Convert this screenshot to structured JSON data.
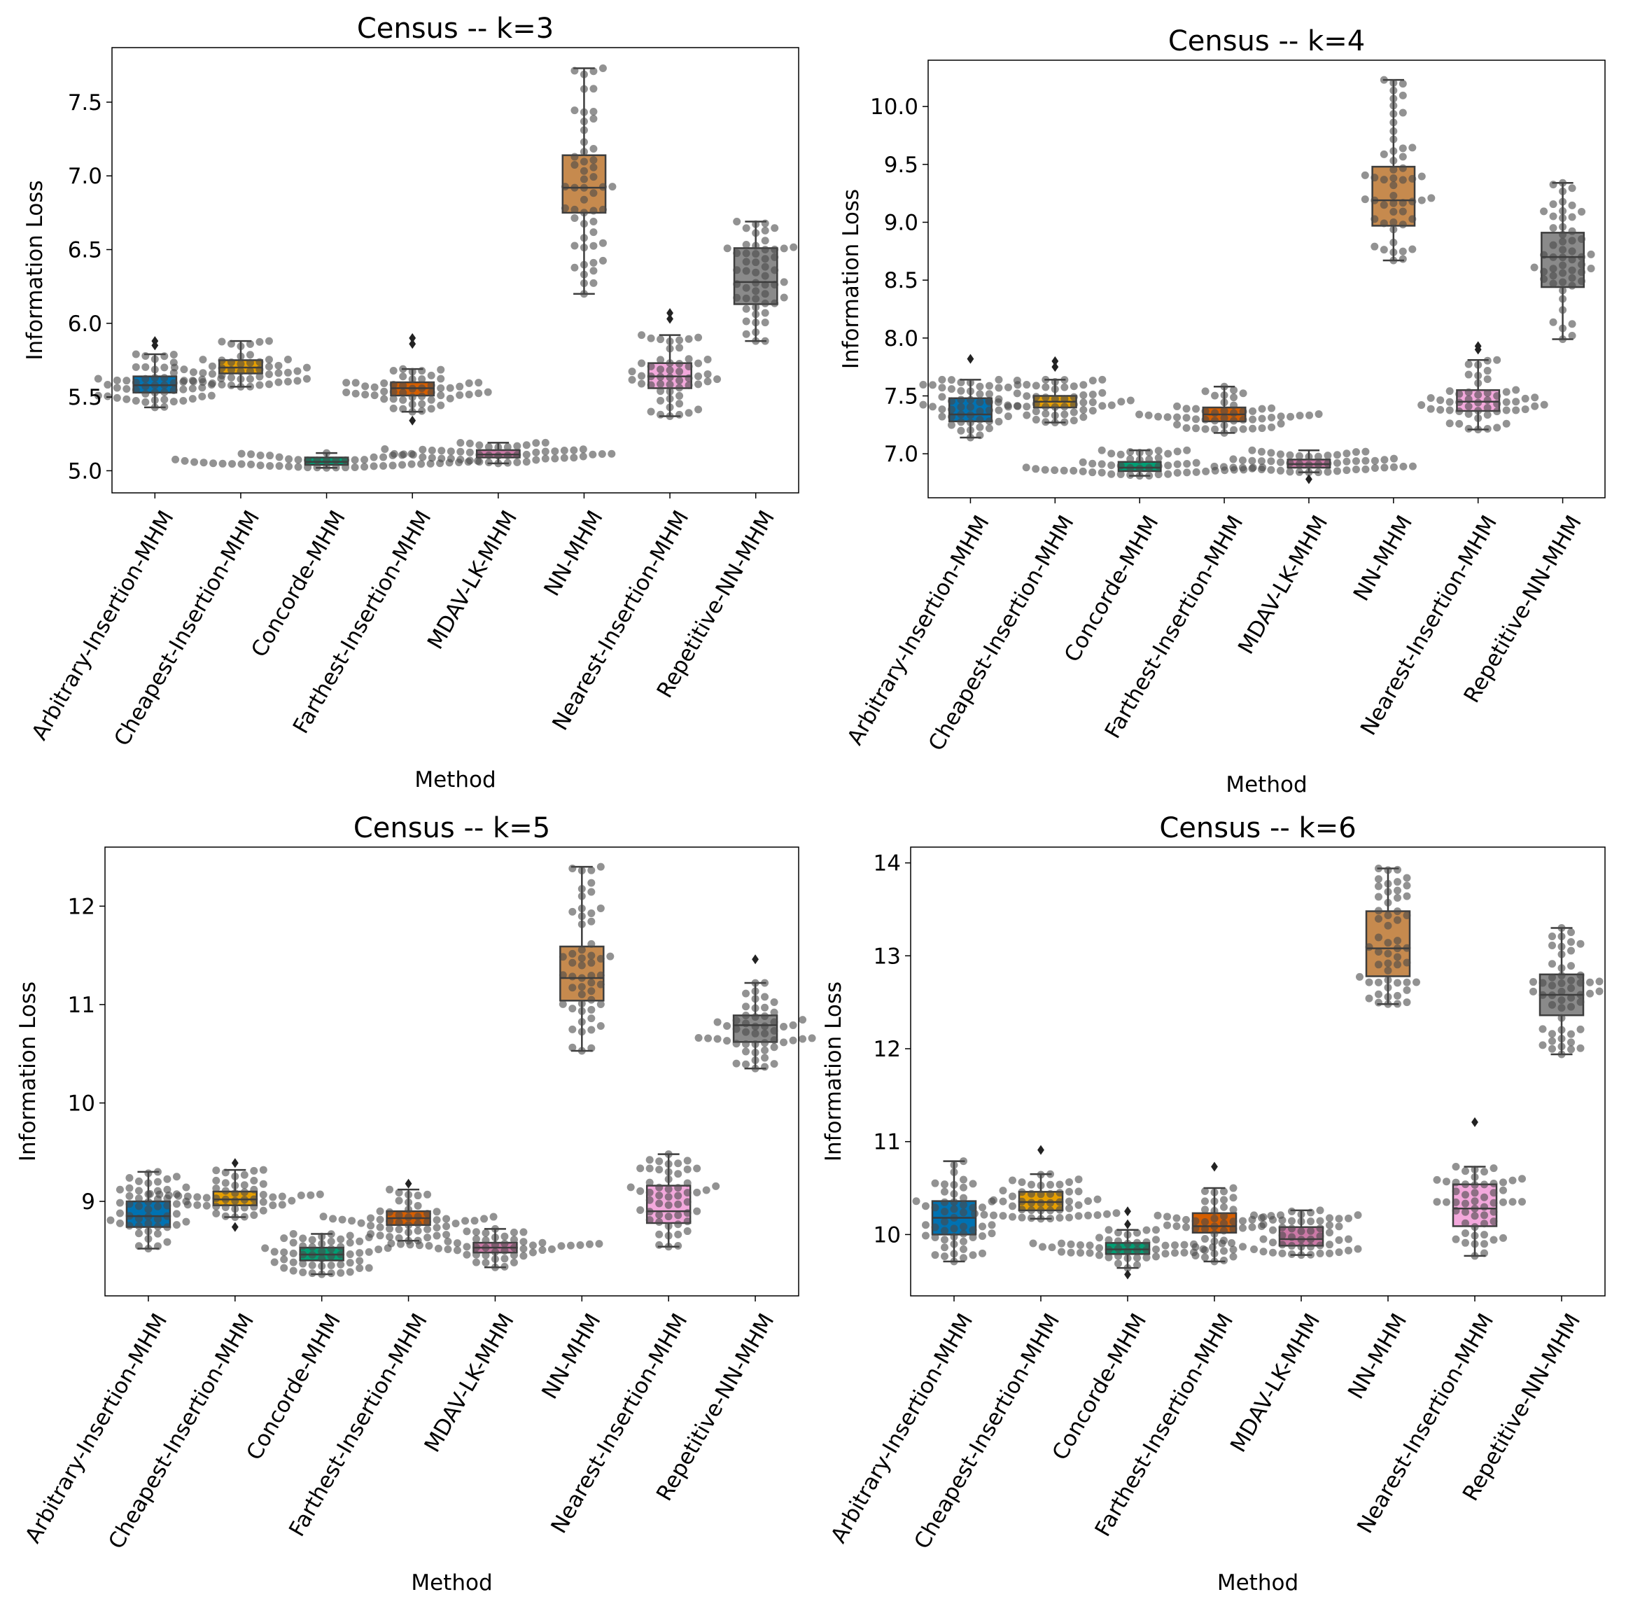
{
  "chart_data": [
    {
      "type": "box",
      "title": "Census -- k=3",
      "xlabel": "Method",
      "ylabel": "Information Loss",
      "ylim": [
        4.85,
        7.87
      ],
      "yticks": [
        5.0,
        5.5,
        6.0,
        6.5,
        7.0,
        7.5
      ],
      "ytick_labels": [
        "5.0",
        "5.5",
        "6.0",
        "6.5",
        "7.0",
        "7.5"
      ],
      "categories": [
        "Arbitrary-Insertion-MHM",
        "Cheapest-Insertion-MHM",
        "Concorde-MHM",
        "Farthest-Insertion-MHM",
        "MDAV-LK-MHM",
        "NN-MHM",
        "Nearest-Insertion-MHM",
        "Repetitive-NN-MHM"
      ],
      "boxes": [
        {
          "min": 5.43,
          "q1": 5.53,
          "median": 5.58,
          "q3": 5.64,
          "max": 5.79,
          "outliers": [
            5.85,
            5.88
          ]
        },
        {
          "min": 5.57,
          "q1": 5.66,
          "median": 5.7,
          "q3": 5.75,
          "max": 5.88,
          "outliers": []
        },
        {
          "min": 5.02,
          "q1": 5.04,
          "median": 5.06,
          "q3": 5.09,
          "max": 5.12,
          "outliers": []
        },
        {
          "min": 5.4,
          "q1": 5.51,
          "median": 5.56,
          "q3": 5.6,
          "max": 5.69,
          "outliers": [
            5.34,
            5.86,
            5.9
          ]
        },
        {
          "min": 5.05,
          "q1": 5.09,
          "median": 5.11,
          "q3": 5.14,
          "max": 5.19,
          "outliers": []
        },
        {
          "min": 6.2,
          "q1": 6.75,
          "median": 6.92,
          "q3": 7.14,
          "max": 7.73,
          "outliers": []
        },
        {
          "min": 5.37,
          "q1": 5.56,
          "median": 5.64,
          "q3": 5.73,
          "max": 5.92,
          "outliers": [
            6.03,
            6.07
          ]
        },
        {
          "min": 5.88,
          "q1": 6.13,
          "median": 6.28,
          "q3": 6.51,
          "max": 6.69,
          "outliers": []
        }
      ]
    },
    {
      "type": "box",
      "title": "Census -- k=4",
      "xlabel": "Method",
      "ylabel": "Information Loss",
      "ylim": [
        6.62,
        10.4
      ],
      "yticks": [
        7.0,
        7.5,
        8.0,
        8.5,
        9.0,
        9.5,
        10.0
      ],
      "ytick_labels": [
        "7.0",
        "7.5",
        "8.0",
        "8.5",
        "9.0",
        "9.5",
        "10.0"
      ],
      "categories": [
        "Arbitrary-Insertion-MHM",
        "Cheapest-Insertion-MHM",
        "Concorde-MHM",
        "Farthest-Insertion-MHM",
        "MDAV-LK-MHM",
        "NN-MHM",
        "Nearest-Insertion-MHM",
        "Repetitive-NN-MHM"
      ],
      "boxes": [
        {
          "min": 7.14,
          "q1": 7.28,
          "median": 7.34,
          "q3": 7.48,
          "max": 7.64,
          "outliers": [
            7.82
          ]
        },
        {
          "min": 7.27,
          "q1": 7.4,
          "median": 7.45,
          "q3": 7.5,
          "max": 7.64,
          "outliers": [
            7.75,
            7.8
          ]
        },
        {
          "min": 6.81,
          "q1": 6.85,
          "median": 6.88,
          "q3": 6.93,
          "max": 7.03,
          "outliers": []
        },
        {
          "min": 7.18,
          "q1": 7.28,
          "median": 7.34,
          "q3": 7.4,
          "max": 7.58,
          "outliers": []
        },
        {
          "min": 6.84,
          "q1": 6.88,
          "median": 6.91,
          "q3": 6.95,
          "max": 7.03,
          "outliers": [
            6.78
          ]
        },
        {
          "min": 8.67,
          "q1": 8.97,
          "median": 9.19,
          "q3": 9.48,
          "max": 10.23,
          "outliers": []
        },
        {
          "min": 7.21,
          "q1": 7.37,
          "median": 7.45,
          "q3": 7.55,
          "max": 7.81,
          "outliers": [
            7.9,
            7.93
          ]
        },
        {
          "min": 7.99,
          "q1": 8.44,
          "median": 8.7,
          "q3": 8.91,
          "max": 9.34,
          "outliers": []
        }
      ]
    },
    {
      "type": "box",
      "title": "Census -- k=5",
      "xlabel": "Method",
      "ylabel": "Information Loss",
      "ylim": [
        8.04,
        12.6
      ],
      "yticks": [
        9,
        10,
        11,
        12
      ],
      "ytick_labels": [
        "9",
        "10",
        "11",
        "12"
      ],
      "categories": [
        "Arbitrary-Insertion-MHM",
        "Cheapest-Insertion-MHM",
        "Concorde-MHM",
        "Farthest-Insertion-MHM",
        "MDAV-LK-MHM",
        "NN-MHM",
        "Nearest-Insertion-MHM",
        "Repetitive-NN-MHM"
      ],
      "boxes": [
        {
          "min": 8.52,
          "q1": 8.74,
          "median": 8.85,
          "q3": 9.0,
          "max": 9.3,
          "outliers": []
        },
        {
          "min": 8.84,
          "q1": 8.96,
          "median": 9.02,
          "q3": 9.1,
          "max": 9.32,
          "outliers": [
            8.74,
            9.39
          ]
        },
        {
          "min": 8.26,
          "q1": 8.4,
          "median": 8.46,
          "q3": 8.53,
          "max": 8.67,
          "outliers": []
        },
        {
          "min": 8.6,
          "q1": 8.76,
          "median": 8.83,
          "q3": 8.9,
          "max": 9.12,
          "outliers": [
            9.18
          ]
        },
        {
          "min": 8.33,
          "q1": 8.48,
          "median": 8.53,
          "q3": 8.58,
          "max": 8.72,
          "outliers": []
        },
        {
          "min": 10.53,
          "q1": 11.04,
          "median": 11.27,
          "q3": 11.59,
          "max": 12.4,
          "outliers": []
        },
        {
          "min": 8.54,
          "q1": 8.78,
          "median": 8.9,
          "q3": 9.16,
          "max": 9.48,
          "outliers": []
        },
        {
          "min": 10.35,
          "q1": 10.62,
          "median": 10.79,
          "q3": 10.89,
          "max": 11.22,
          "outliers": [
            11.46
          ]
        }
      ]
    },
    {
      "type": "box",
      "title": "Census -- k=6",
      "xlabel": "Method",
      "ylabel": "Information Loss",
      "ylim": [
        9.34,
        14.17
      ],
      "yticks": [
        10,
        11,
        12,
        13,
        14
      ],
      "ytick_labels": [
        "10",
        "11",
        "12",
        "13",
        "14"
      ],
      "categories": [
        "Arbitrary-Insertion-MHM",
        "Cheapest-Insertion-MHM",
        "Concorde-MHM",
        "Farthest-Insertion-MHM",
        "MDAV-LK-MHM",
        "NN-MHM",
        "Nearest-Insertion-MHM",
        "Repetitive-NN-MHM"
      ],
      "boxes": [
        {
          "min": 9.71,
          "q1": 10.0,
          "median": 10.18,
          "q3": 10.36,
          "max": 10.79,
          "outliers": []
        },
        {
          "min": 10.17,
          "q1": 10.26,
          "median": 10.35,
          "q3": 10.46,
          "max": 10.65,
          "outliers": [
            10.91
          ]
        },
        {
          "min": 9.64,
          "q1": 9.79,
          "median": 9.84,
          "q3": 9.91,
          "max": 10.05,
          "outliers": [
            9.57,
            10.11,
            10.25
          ]
        },
        {
          "min": 9.71,
          "q1": 10.02,
          "median": 10.09,
          "q3": 10.23,
          "max": 10.5,
          "outliers": [
            10.73
          ]
        },
        {
          "min": 9.78,
          "q1": 9.88,
          "median": 9.95,
          "q3": 10.08,
          "max": 10.26,
          "outliers": []
        },
        {
          "min": 12.48,
          "q1": 12.78,
          "median": 13.08,
          "q3": 13.48,
          "max": 13.94,
          "outliers": []
        },
        {
          "min": 9.77,
          "q1": 10.09,
          "median": 10.28,
          "q3": 10.54,
          "max": 10.73,
          "outliers": [
            11.21
          ]
        },
        {
          "min": 11.94,
          "q1": 12.36,
          "median": 12.58,
          "q3": 12.8,
          "max": 13.3,
          "outliers": []
        }
      ]
    }
  ],
  "colors": {
    "boxes": [
      "#0072B2",
      "#E69F00",
      "#009E73",
      "#D55E00",
      "#CC79A7",
      "#C68A4E",
      "#F3A8DC",
      "#8A8A8A"
    ],
    "swarm_point": "#4a4a4a",
    "line": "#3d3d3d",
    "axis": "#000000"
  }
}
